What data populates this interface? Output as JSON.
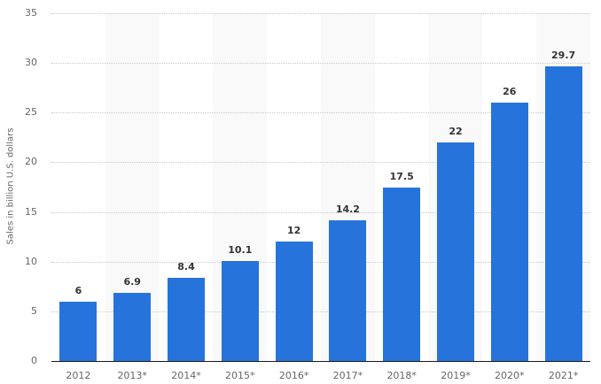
{
  "chart_data": {
    "type": "bar",
    "title": "",
    "xlabel": "",
    "ylabel": "Sales in billion U.S. dollars",
    "categories": [
      "2012",
      "2013*",
      "2014*",
      "2015*",
      "2016*",
      "2017*",
      "2018*",
      "2019*",
      "2020*",
      "2021*"
    ],
    "values": [
      6,
      6.9,
      8.4,
      10.1,
      12,
      14.2,
      17.5,
      22,
      26,
      29.7
    ],
    "value_labels": [
      "6",
      "6.9",
      "8.4",
      "10.1",
      "12",
      "14.2",
      "17.5",
      "22",
      "26",
      "29.7"
    ],
    "ylim": [
      0,
      35
    ],
    "yticks": [
      0,
      5,
      10,
      15,
      20,
      25,
      30,
      35
    ],
    "grid": true,
    "legend": null,
    "colors": {
      "bar": "#2773dc",
      "band": "#f9f9f9",
      "grid": "#c8c8c8",
      "axis": "#1a1a1a",
      "label": "#333333",
      "tick": "#666666"
    }
  }
}
